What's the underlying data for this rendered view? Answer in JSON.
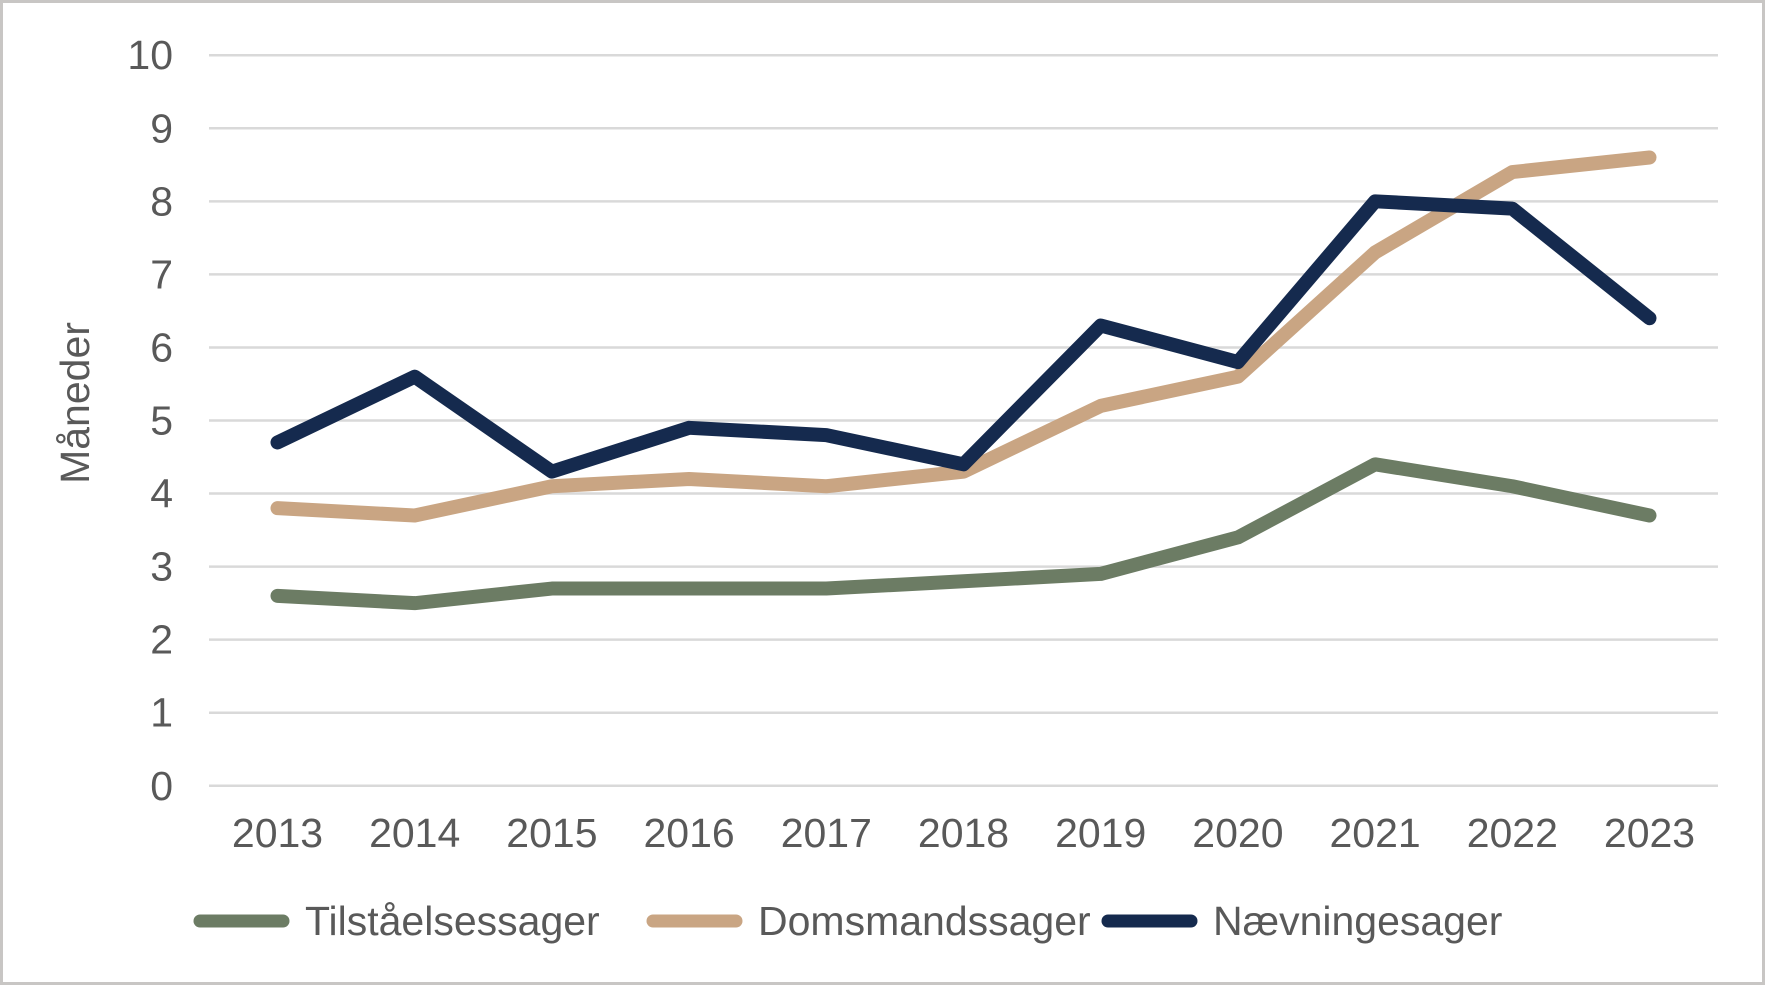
{
  "theme": {
    "background": "#ffffff",
    "border_color": "#c8c6c4",
    "grid_color": "#d9d9d9",
    "text_color": "#595959"
  },
  "chart_data": {
    "type": "line",
    "title": "",
    "xlabel": "",
    "ylabel": "Måneder",
    "x": [
      "2013",
      "2014",
      "2015",
      "2016",
      "2017",
      "2018",
      "2019",
      "2020",
      "2021",
      "2022",
      "2023"
    ],
    "series": [
      {
        "name": "Tilståelsessager",
        "color": "#6c7c64",
        "values": [
          2.6,
          2.5,
          2.7,
          2.7,
          2.7,
          2.8,
          2.9,
          3.4,
          4.4,
          4.1,
          3.7
        ]
      },
      {
        "name": "Domsmandssager",
        "color": "#c9a583",
        "values": [
          3.8,
          3.7,
          4.1,
          4.2,
          4.1,
          4.3,
          5.2,
          5.6,
          7.3,
          8.4,
          8.6
        ]
      },
      {
        "name": "Nævningesager",
        "color": "#152a4e",
        "values": [
          4.7,
          5.6,
          4.3,
          4.9,
          4.8,
          4.4,
          6.3,
          5.8,
          8.0,
          7.9,
          6.4
        ]
      }
    ],
    "ylim": [
      0,
      10
    ],
    "yticks": [
      0,
      1,
      2,
      3,
      4,
      5,
      6,
      7,
      8,
      9,
      10
    ],
    "grid": "horizontal",
    "legend_position": "bottom"
  }
}
